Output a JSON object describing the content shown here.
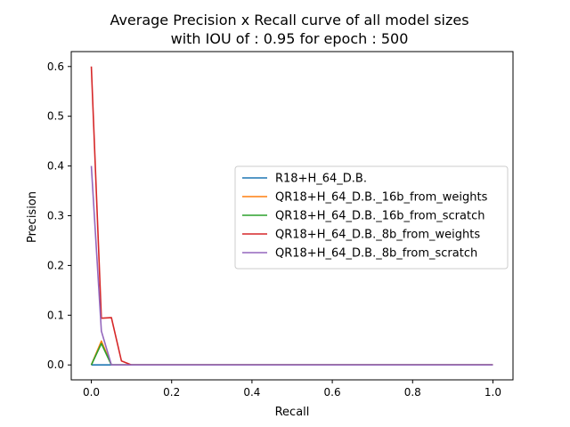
{
  "chart_data": {
    "type": "line",
    "title_line1": "Average Precision x Recall curve of all model sizes",
    "title_line2": "with IOU of : 0.95 for epoch : 500",
    "xlabel": "Recall",
    "ylabel": "Precision",
    "xlim": [
      -0.05,
      1.05
    ],
    "ylim": [
      -0.03,
      0.63
    ],
    "xticks": [
      0.0,
      0.2,
      0.4,
      0.6,
      0.8,
      1.0
    ],
    "xtick_labels": [
      "0.0",
      "0.2",
      "0.4",
      "0.6",
      "0.8",
      "1.0"
    ],
    "yticks": [
      0.0,
      0.1,
      0.2,
      0.3,
      0.4,
      0.5,
      0.6
    ],
    "ytick_labels": [
      "0.0",
      "0.1",
      "0.2",
      "0.3",
      "0.4",
      "0.5",
      "0.6"
    ],
    "grid": false,
    "legend_position": "center-right",
    "series": [
      {
        "name": "R18+H_64_D.B.",
        "color": "#1f77b4",
        "x": [
          0.0,
          0.025,
          0.05,
          0.075,
          0.1,
          0.2,
          0.4,
          0.6,
          0.8,
          1.0
        ],
        "y": [
          0.0,
          0.0,
          0.0,
          0.0,
          0.0,
          0.0,
          0.0,
          0.0,
          0.0,
          0.0
        ]
      },
      {
        "name": "QR18+H_64_D.B._16b_from_weights",
        "color": "#ff7f0e",
        "x": [
          0.0,
          0.025,
          0.05,
          0.075,
          0.1,
          0.2,
          0.4,
          0.6,
          0.8,
          1.0
        ],
        "y": [
          0.0,
          0.048,
          0.0,
          0.0,
          0.0,
          0.0,
          0.0,
          0.0,
          0.0,
          0.0
        ]
      },
      {
        "name": "QR18+H_64_D.B._16b_from_scratch",
        "color": "#2ca02c",
        "x": [
          0.0,
          0.025,
          0.05,
          0.075,
          0.1,
          0.2,
          0.4,
          0.6,
          0.8,
          1.0
        ],
        "y": [
          0.0,
          0.043,
          0.0,
          0.0,
          0.0,
          0.0,
          0.0,
          0.0,
          0.0,
          0.0
        ]
      },
      {
        "name": "QR18+H_64_D.B._8b_from_weights",
        "color": "#d62728",
        "x": [
          0.0,
          0.025,
          0.05,
          0.075,
          0.1,
          0.2,
          0.4,
          0.6,
          0.8,
          1.0
        ],
        "y": [
          0.6,
          0.094,
          0.095,
          0.008,
          0.0,
          0.0,
          0.0,
          0.0,
          0.0,
          0.0
        ]
      },
      {
        "name": "QR18+H_64_D.B._8b_from_scratch",
        "color": "#9467bd",
        "x": [
          0.0,
          0.025,
          0.05,
          0.075,
          0.1,
          0.2,
          0.4,
          0.6,
          0.8,
          1.0
        ],
        "y": [
          0.4,
          0.068,
          0.0,
          0.0,
          0.0,
          0.0,
          0.0,
          0.0,
          0.0,
          0.0
        ]
      }
    ]
  }
}
